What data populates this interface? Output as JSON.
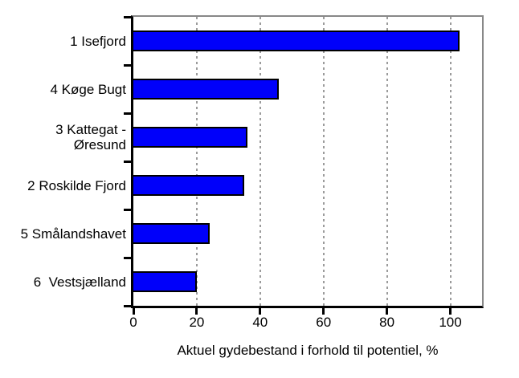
{
  "chart_data": {
    "type": "bar",
    "orientation": "horizontal",
    "title": "",
    "categories": [
      "1 Isefjord",
      "4 Køge Bugt",
      "3 Kattegat -\nØresund",
      "2 Roskilde Fjord",
      "5 Smålandshavet",
      "6  Vestsjælland"
    ],
    "values": [
      103,
      46,
      36,
      35,
      24,
      20
    ],
    "xlabel": "Aktuel gydebestand i forhold til potentiel, %",
    "ylabel": "",
    "xlim": [
      0,
      110
    ],
    "x_tick_labels": [
      "0",
      "20",
      "40",
      "60",
      "80",
      "100"
    ],
    "x_tick_values": [
      0,
      20,
      40,
      60,
      80,
      100
    ],
    "grid": "vertical dashed gridlines at x tick positions (except 0)",
    "legend_position": "none",
    "colors": {
      "bar_fill": "#0000fa",
      "bar_border": "#000000",
      "gridline": "#9b9b9b",
      "axis": "#000000",
      "plot_border": "#888888",
      "background": "#ffffff",
      "text": "#000000"
    }
  }
}
